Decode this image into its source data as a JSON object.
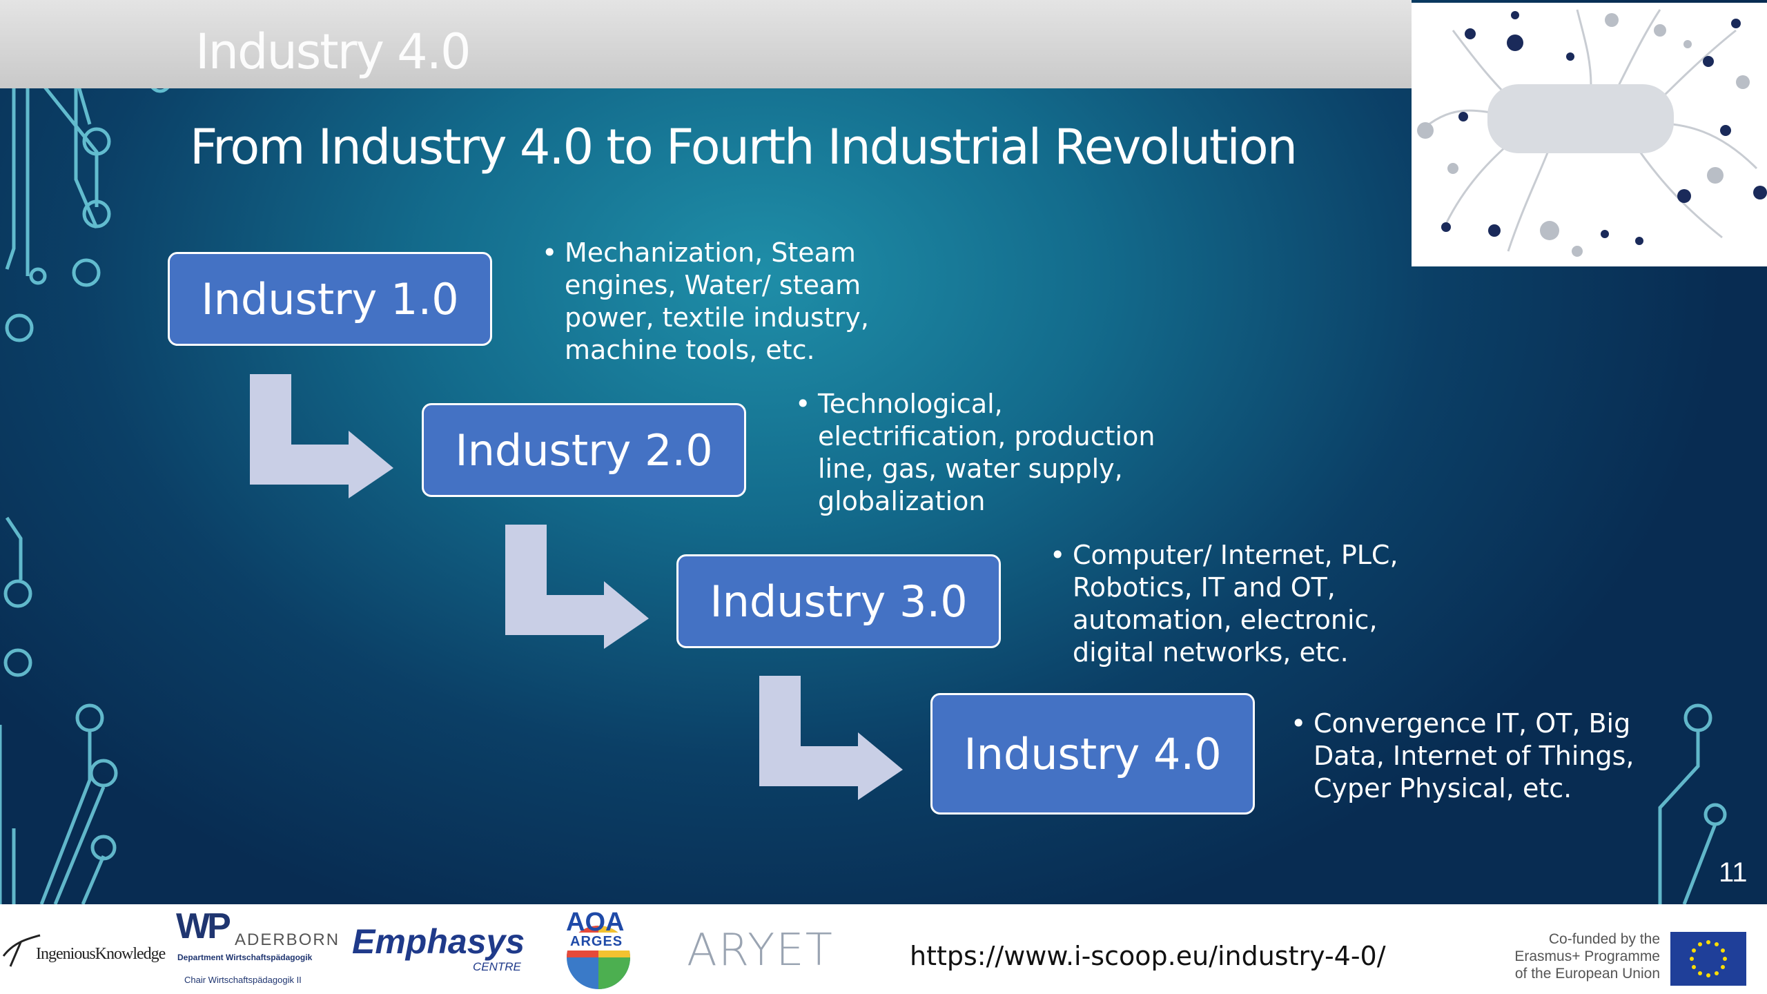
{
  "deck_title": "Industry 4.0",
  "heading": "From Industry 4.0 to Fourth Industrial Revolution",
  "stages": [
    {
      "label": "Industry 1.0",
      "description": "Mechanization, Steam engines, Water/ steam power, textile industry, machine tools, etc."
    },
    {
      "label": "Industry 2.0",
      "description": "Technological, electrification, production line, gas, water supply, globalization"
    },
    {
      "label": "Industry 3.0",
      "description": "Computer/ Internet, PLC, Robotics, IT and OT, automation, electronic, digital networks, etc."
    },
    {
      "label": "Industry 4.0",
      "description": "Convergence IT, OT, Big Data, Internet of Things, Cyper Physical, etc."
    }
  ],
  "bullet_char": "•",
  "page_number": "11",
  "footer": {
    "logos": {
      "ingenious": "IngeniousKnowledge",
      "wp": "WP",
      "paderborn": "ADERBORN",
      "wp_dept": "Department Wirtschaftspädagogik",
      "wp_sub": "Chair Wirtschaftspädagogik II",
      "emphasys": "Emphasys",
      "emphasys_sub": "CENTRE",
      "aoa": "AOA",
      "aoa_sub": "ARGES",
      "aryet": "ARYET"
    },
    "source_url": "https://www.i-scoop.eu/industry-4-0/",
    "erasmus": [
      "Co-funded by the",
      "Erasmus+ Programme",
      "of the European Union"
    ]
  },
  "colors": {
    "box": "#4472c4",
    "arrow": "#c9cfe6",
    "title_band": "#d4d4d4",
    "eu_blue": "#1f3f99",
    "eu_star": "#ffdd00"
  }
}
